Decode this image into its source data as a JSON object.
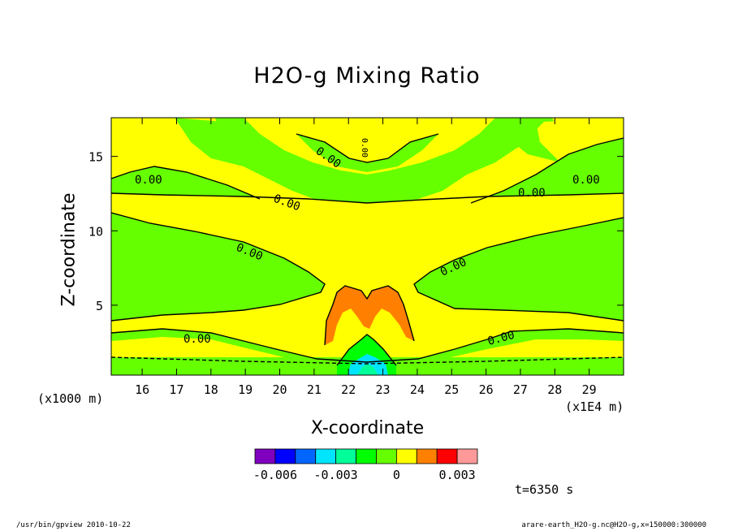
{
  "chart_data": {
    "type": "contour",
    "title": "H2O-g Mixing Ratio",
    "xlabel": "X-coordinate",
    "ylabel": "Z-coordinate",
    "x_unit_label": "(x1000 m)",
    "x_multiplier_label": "(x1E4 m)",
    "x_ticks": [
      "16",
      "17",
      "18",
      "19",
      "20",
      "21",
      "22",
      "23",
      "24",
      "25",
      "26",
      "27",
      "28",
      "29"
    ],
    "y_ticks": [
      "5",
      "10",
      "15"
    ],
    "xlim": [
      15.1,
      30.0
    ],
    "ylim": [
      0.3,
      17.6
    ],
    "contour_labels": [
      "0.00",
      "0.00",
      "0.00",
      "0.00",
      "0.00",
      "0.00",
      "0.00",
      "0.00",
      "0.00",
      "0.00"
    ],
    "colorbar": {
      "colors": [
        "#7f00bf",
        "#0000ff",
        "#0066ff",
        "#00e5ff",
        "#00ff99",
        "#00ff00",
        "#66ff00",
        "#ffff00",
        "#ff8000",
        "#ff0000",
        "#ff9999"
      ],
      "tick_labels": [
        "-0.006",
        "-0.003",
        "0",
        "0.003"
      ]
    },
    "fill_colors": {
      "background": "#66ff00",
      "core": "#ffff00",
      "plume": "#ff8000",
      "low": "#00ff00",
      "lowest": "#00e5ff"
    }
  },
  "annotation": {
    "time": "t=6350 s"
  },
  "footer": {
    "left": "/usr/bin/gpview  2010-10-22",
    "right": "arare-earth_H2O-g.nc@H2O-g,x=150000:300000"
  }
}
